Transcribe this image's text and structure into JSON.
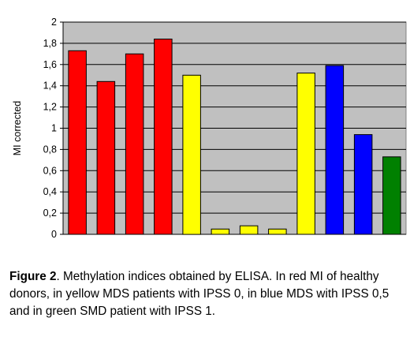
{
  "chart_data": {
    "type": "bar",
    "categories": [
      "",
      "",
      "",
      "",
      "",
      "",
      "",
      "",
      "",
      "",
      "",
      ""
    ],
    "values": [
      1.73,
      1.44,
      1.7,
      1.84,
      1.5,
      0.05,
      0.08,
      0.05,
      1.52,
      1.59,
      0.94,
      0.73
    ],
    "bar_colors": [
      "#ff0000",
      "#ff0000",
      "#ff0000",
      "#ff0000",
      "#ffff00",
      "#ffff00",
      "#ffff00",
      "#ffff00",
      "#ffff00",
      "#0000ff",
      "#0000ff",
      "#008000"
    ],
    "title": "",
    "xlabel": "",
    "ylabel": "MI corrected",
    "ylim": [
      0,
      2
    ],
    "y_ticks": [
      "0",
      "0,2",
      "0,4",
      "0,6",
      "0,8",
      "1",
      "1,2",
      "1,4",
      "1,6",
      "1,8",
      "2"
    ],
    "y_tick_values": [
      0,
      0.2,
      0.4,
      0.6,
      0.8,
      1.0,
      1.2,
      1.4,
      1.6,
      1.8,
      2.0
    ],
    "grid": true,
    "legend": "none",
    "plot_background": "#c0c0c0"
  },
  "caption": {
    "label": "Figure 2",
    "text": ". Methylation indices obtained by ELISA. In red MI of healthy donors, in yellow MDS patients with IPSS 0, in blue MDS with IPSS 0,5 and in green SMD patient with IPSS 1."
  }
}
